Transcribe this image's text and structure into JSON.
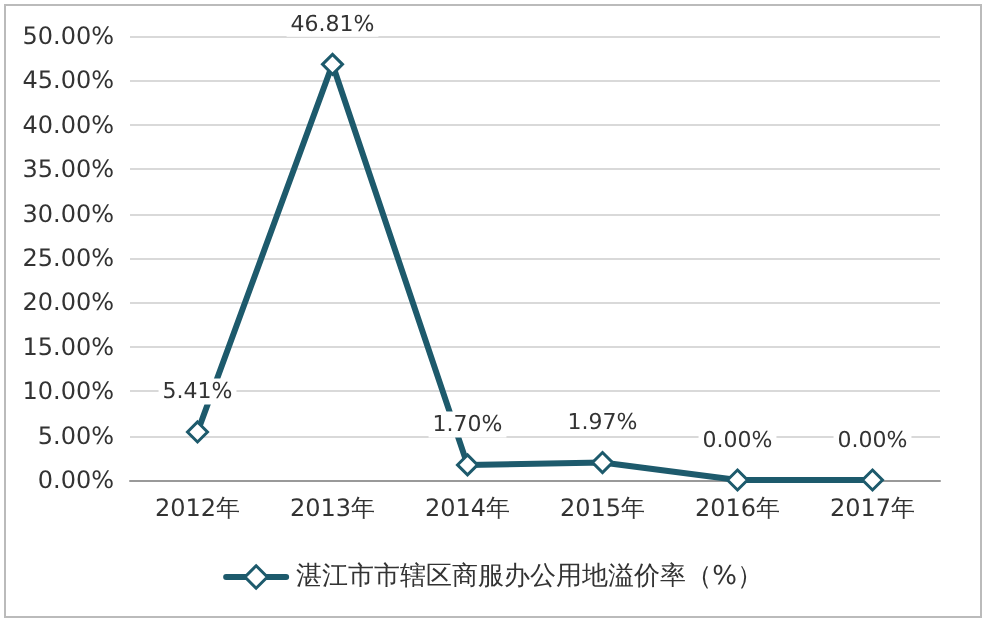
{
  "chart_data": {
    "type": "line",
    "categories": [
      "2012年",
      "2013年",
      "2014年",
      "2015年",
      "2016年",
      "2017年"
    ],
    "series": [
      {
        "name": "湛江市市辖区商服办公用地溢价率（%）",
        "color": "#1d5a6c",
        "values": [
          5.41,
          46.81,
          1.7,
          1.97,
          0.0,
          0.0
        ],
        "value_labels": [
          "5.41%",
          "46.81%",
          "1.70%",
          "1.97%",
          "0.00%",
          "0.00%"
        ]
      }
    ],
    "ylim": [
      0,
      50
    ],
    "yticks": [
      {
        "value": 0,
        "label": "0.00%"
      },
      {
        "value": 5,
        "label": "5.00%"
      },
      {
        "value": 10,
        "label": "10.00%"
      },
      {
        "value": 15,
        "label": "15.00%"
      },
      {
        "value": 20,
        "label": "20.00%"
      },
      {
        "value": 25,
        "label": "25.00%"
      },
      {
        "value": 30,
        "label": "30.00%"
      },
      {
        "value": 35,
        "label": "35.00%"
      },
      {
        "value": 40,
        "label": "40.00%"
      },
      {
        "value": 45,
        "label": "45.00%"
      },
      {
        "value": 50,
        "label": "50.00%"
      }
    ],
    "grid": "y",
    "legend": "bottom",
    "marker": "diamond",
    "line_style": "solid"
  }
}
